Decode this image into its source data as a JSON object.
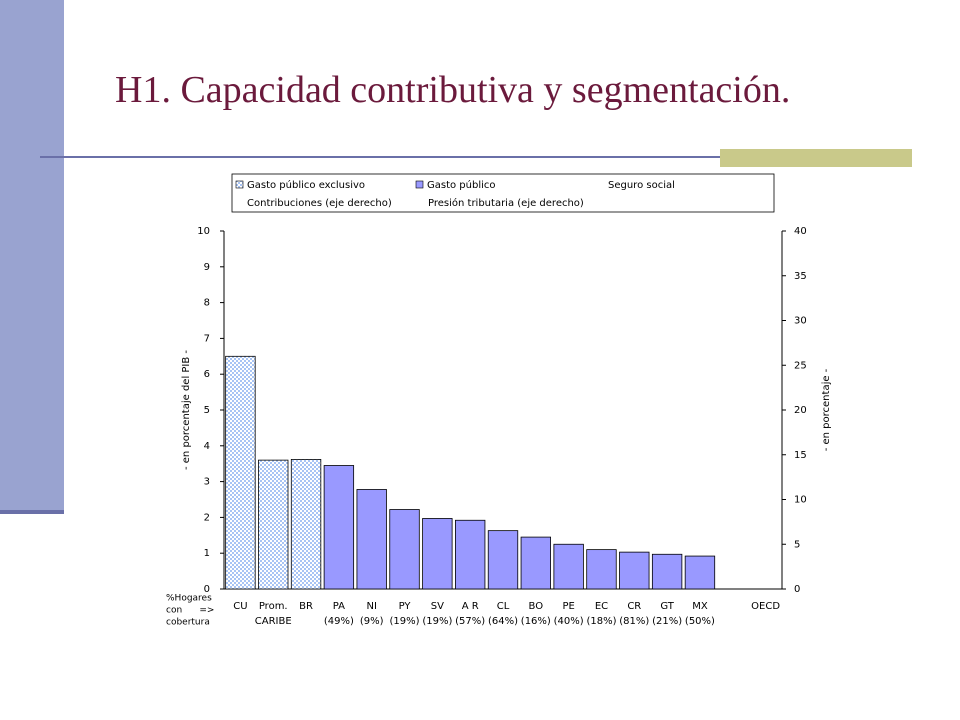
{
  "chart_data": {
    "type": "bar",
    "title": "H1. Capacidad contributiva y segmentación.",
    "categories": [
      "CU",
      "Prom.",
      "BR",
      "PA",
      "NI",
      "PY",
      "SV",
      "A R",
      "CL",
      "BO",
      "PE",
      "EC",
      "CR",
      "GT",
      "MX",
      null,
      "OECD"
    ],
    "category_sublabels": [
      null,
      "CARIBE",
      null,
      "(49%)",
      "(9%)",
      "(19%)",
      "(19%)",
      "(57%)",
      "(64%)",
      "(16%)",
      "(40%)",
      "(18%)",
      "(81%)",
      "(21%)",
      "(50%)",
      null,
      null
    ],
    "row_label": [
      "%Hogares",
      "con      =>",
      "cobertura"
    ],
    "series": [
      {
        "name": "Gasto público exclusivo",
        "color": "#a8c4f4",
        "pattern": "checker",
        "values": [
          6.5,
          3.6,
          3.62,
          null,
          null,
          null,
          null,
          null,
          null,
          null,
          null,
          null,
          null,
          null,
          null,
          null,
          null
        ]
      },
      {
        "name": "Gasto público",
        "color": "#9999ff",
        "values": [
          null,
          null,
          null,
          3.45,
          2.78,
          2.22,
          1.97,
          1.92,
          1.63,
          1.45,
          1.25,
          1.1,
          1.03,
          0.97,
          0.92,
          null,
          null
        ]
      }
    ],
    "other_legend_entries": [
      "Seguro social",
      "Contribuciones (eje derecho)",
      "Presión tributaria (eje derecho)"
    ],
    "ylabel": "- en porcentaje del PIB -",
    "y2label": "- en porcentaje -",
    "ylim": [
      0,
      10
    ],
    "yticks": [
      0,
      1,
      2,
      3,
      4,
      5,
      6,
      7,
      8,
      9,
      10
    ],
    "y2lim": [
      0,
      40
    ],
    "y2ticks": [
      0,
      5,
      10,
      15,
      20,
      25,
      30,
      35,
      40
    ]
  }
}
